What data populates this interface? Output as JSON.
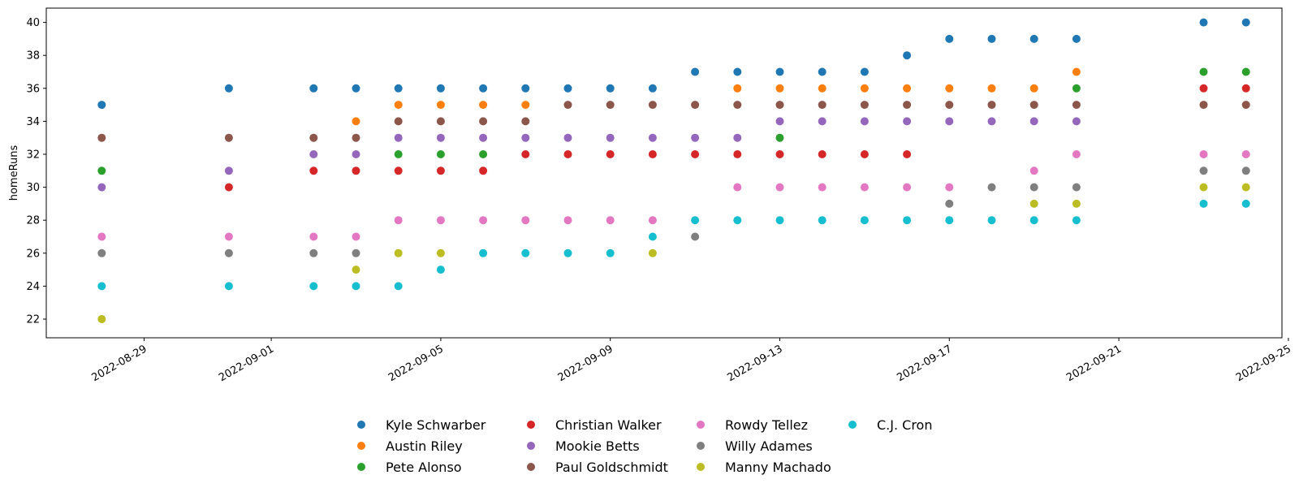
{
  "chart_data": {
    "type": "scatter",
    "title": "",
    "xlabel": "",
    "ylabel": "homeRuns",
    "xlim": [
      "2022-08-27",
      "2022-09-25"
    ],
    "ylim": [
      21.2,
      40.8
    ],
    "x_ticks": [
      "2022-08-29",
      "2022-09-01",
      "2022-09-05",
      "2022-09-09",
      "2022-09-13",
      "2022-09-17",
      "2022-09-21",
      "2022-09-25"
    ],
    "y_ticks": [
      22,
      24,
      26,
      28,
      30,
      32,
      34,
      36,
      38,
      40
    ],
    "grid": false,
    "legend_position": "bottom-center",
    "series": [
      {
        "name": "Kyle Schwarber",
        "color": "#1f77b4",
        "points": [
          [
            "2022-08-28",
            35
          ],
          [
            "2022-08-31",
            36
          ],
          [
            "2022-09-02",
            36
          ],
          [
            "2022-09-03",
            36
          ],
          [
            "2022-09-04",
            36
          ],
          [
            "2022-09-05",
            36
          ],
          [
            "2022-09-06",
            36
          ],
          [
            "2022-09-07",
            36
          ],
          [
            "2022-09-08",
            36
          ],
          [
            "2022-09-09",
            36
          ],
          [
            "2022-09-10",
            36
          ],
          [
            "2022-09-11",
            37
          ],
          [
            "2022-09-12",
            37
          ],
          [
            "2022-09-13",
            37
          ],
          [
            "2022-09-14",
            37
          ],
          [
            "2022-09-15",
            37
          ],
          [
            "2022-09-16",
            38
          ],
          [
            "2022-09-17",
            39
          ],
          [
            "2022-09-18",
            39
          ],
          [
            "2022-09-19",
            39
          ],
          [
            "2022-09-20",
            39
          ],
          [
            "2022-09-23",
            40
          ],
          [
            "2022-09-24",
            40
          ]
        ]
      },
      {
        "name": "Austin Riley",
        "color": "#ff7f0e",
        "points": [
          [
            "2022-09-03",
            34
          ],
          [
            "2022-09-04",
            35
          ],
          [
            "2022-09-05",
            35
          ],
          [
            "2022-09-06",
            35
          ],
          [
            "2022-09-07",
            35
          ],
          [
            "2022-09-12",
            36
          ],
          [
            "2022-09-13",
            36
          ],
          [
            "2022-09-14",
            36
          ],
          [
            "2022-09-15",
            36
          ],
          [
            "2022-09-16",
            36
          ],
          [
            "2022-09-17",
            36
          ],
          [
            "2022-09-18",
            36
          ],
          [
            "2022-09-19",
            36
          ],
          [
            "2022-09-20",
            37
          ]
        ]
      },
      {
        "name": "Pete Alonso",
        "color": "#2ca02c",
        "points": [
          [
            "2022-08-28",
            31
          ],
          [
            "2022-09-04",
            32
          ],
          [
            "2022-09-05",
            32
          ],
          [
            "2022-09-06",
            32
          ],
          [
            "2022-09-13",
            33
          ],
          [
            "2022-09-20",
            36
          ],
          [
            "2022-09-23",
            37
          ],
          [
            "2022-09-24",
            37
          ]
        ]
      },
      {
        "name": "Christian Walker",
        "color": "#d62728",
        "points": [
          [
            "2022-08-31",
            30
          ],
          [
            "2022-09-02",
            31
          ],
          [
            "2022-09-03",
            31
          ],
          [
            "2022-09-04",
            31
          ],
          [
            "2022-09-05",
            31
          ],
          [
            "2022-09-06",
            31
          ],
          [
            "2022-09-07",
            32
          ],
          [
            "2022-09-08",
            32
          ],
          [
            "2022-09-09",
            32
          ],
          [
            "2022-09-10",
            32
          ],
          [
            "2022-09-11",
            32
          ],
          [
            "2022-09-12",
            32
          ],
          [
            "2022-09-13",
            32
          ],
          [
            "2022-09-14",
            32
          ],
          [
            "2022-09-15",
            32
          ],
          [
            "2022-09-16",
            32
          ],
          [
            "2022-09-23",
            36
          ],
          [
            "2022-09-24",
            36
          ]
        ]
      },
      {
        "name": "Mookie Betts",
        "color": "#9467bd",
        "points": [
          [
            "2022-08-28",
            30
          ],
          [
            "2022-08-31",
            31
          ],
          [
            "2022-09-02",
            32
          ],
          [
            "2022-09-03",
            32
          ],
          [
            "2022-09-04",
            33
          ],
          [
            "2022-09-05",
            33
          ],
          [
            "2022-09-06",
            33
          ],
          [
            "2022-09-07",
            33
          ],
          [
            "2022-09-08",
            33
          ],
          [
            "2022-09-09",
            33
          ],
          [
            "2022-09-10",
            33
          ],
          [
            "2022-09-11",
            33
          ],
          [
            "2022-09-12",
            33
          ],
          [
            "2022-09-13",
            34
          ],
          [
            "2022-09-14",
            34
          ],
          [
            "2022-09-15",
            34
          ],
          [
            "2022-09-16",
            34
          ],
          [
            "2022-09-17",
            34
          ],
          [
            "2022-09-18",
            34
          ],
          [
            "2022-09-19",
            34
          ],
          [
            "2022-09-20",
            34
          ]
        ]
      },
      {
        "name": "Paul Goldschmidt",
        "color": "#8c564b",
        "points": [
          [
            "2022-08-28",
            33
          ],
          [
            "2022-08-31",
            33
          ],
          [
            "2022-09-02",
            33
          ],
          [
            "2022-09-03",
            33
          ],
          [
            "2022-09-04",
            34
          ],
          [
            "2022-09-05",
            34
          ],
          [
            "2022-09-06",
            34
          ],
          [
            "2022-09-07",
            34
          ],
          [
            "2022-09-08",
            35
          ],
          [
            "2022-09-09",
            35
          ],
          [
            "2022-09-10",
            35
          ],
          [
            "2022-09-11",
            35
          ],
          [
            "2022-09-12",
            35
          ],
          [
            "2022-09-13",
            35
          ],
          [
            "2022-09-14",
            35
          ],
          [
            "2022-09-15",
            35
          ],
          [
            "2022-09-16",
            35
          ],
          [
            "2022-09-17",
            35
          ],
          [
            "2022-09-18",
            35
          ],
          [
            "2022-09-19",
            35
          ],
          [
            "2022-09-20",
            35
          ],
          [
            "2022-09-23",
            35
          ],
          [
            "2022-09-24",
            35
          ]
        ]
      },
      {
        "name": "Rowdy Tellez",
        "color": "#e377c2",
        "points": [
          [
            "2022-08-28",
            27
          ],
          [
            "2022-08-31",
            27
          ],
          [
            "2022-09-02",
            27
          ],
          [
            "2022-09-03",
            27
          ],
          [
            "2022-09-04",
            28
          ],
          [
            "2022-09-05",
            28
          ],
          [
            "2022-09-06",
            28
          ],
          [
            "2022-09-07",
            28
          ],
          [
            "2022-09-08",
            28
          ],
          [
            "2022-09-09",
            28
          ],
          [
            "2022-09-10",
            28
          ],
          [
            "2022-09-12",
            30
          ],
          [
            "2022-09-13",
            30
          ],
          [
            "2022-09-14",
            30
          ],
          [
            "2022-09-15",
            30
          ],
          [
            "2022-09-16",
            30
          ],
          [
            "2022-09-17",
            30
          ],
          [
            "2022-09-19",
            31
          ],
          [
            "2022-09-20",
            32
          ],
          [
            "2022-09-23",
            32
          ],
          [
            "2022-09-24",
            32
          ]
        ]
      },
      {
        "name": "Willy Adames",
        "color": "#7f7f7f",
        "points": [
          [
            "2022-08-28",
            26
          ],
          [
            "2022-08-31",
            26
          ],
          [
            "2022-09-02",
            26
          ],
          [
            "2022-09-03",
            26
          ],
          [
            "2022-09-11",
            27
          ],
          [
            "2022-09-17",
            29
          ],
          [
            "2022-09-18",
            30
          ],
          [
            "2022-09-19",
            30
          ],
          [
            "2022-09-20",
            30
          ],
          [
            "2022-09-23",
            31
          ],
          [
            "2022-09-24",
            31
          ]
        ]
      },
      {
        "name": "Manny Machado",
        "color": "#bcbd22",
        "points": [
          [
            "2022-08-28",
            22
          ],
          [
            "2022-09-03",
            25
          ],
          [
            "2022-09-04",
            26
          ],
          [
            "2022-09-05",
            26
          ],
          [
            "2022-09-10",
            26
          ],
          [
            "2022-09-19",
            29
          ],
          [
            "2022-09-20",
            29
          ],
          [
            "2022-09-23",
            30
          ],
          [
            "2022-09-24",
            30
          ]
        ]
      },
      {
        "name": "C.J. Cron",
        "color": "#17becf",
        "points": [
          [
            "2022-08-28",
            24
          ],
          [
            "2022-08-31",
            24
          ],
          [
            "2022-09-02",
            24
          ],
          [
            "2022-09-03",
            24
          ],
          [
            "2022-09-04",
            24
          ],
          [
            "2022-09-05",
            25
          ],
          [
            "2022-09-06",
            26
          ],
          [
            "2022-09-07",
            26
          ],
          [
            "2022-09-08",
            26
          ],
          [
            "2022-09-09",
            26
          ],
          [
            "2022-09-10",
            27
          ],
          [
            "2022-09-11",
            28
          ],
          [
            "2022-09-12",
            28
          ],
          [
            "2022-09-13",
            28
          ],
          [
            "2022-09-14",
            28
          ],
          [
            "2022-09-15",
            28
          ],
          [
            "2022-09-16",
            28
          ],
          [
            "2022-09-17",
            28
          ],
          [
            "2022-09-18",
            28
          ],
          [
            "2022-09-19",
            28
          ],
          [
            "2022-09-20",
            28
          ],
          [
            "2022-09-23",
            29
          ],
          [
            "2022-09-24",
            29
          ]
        ]
      }
    ]
  }
}
